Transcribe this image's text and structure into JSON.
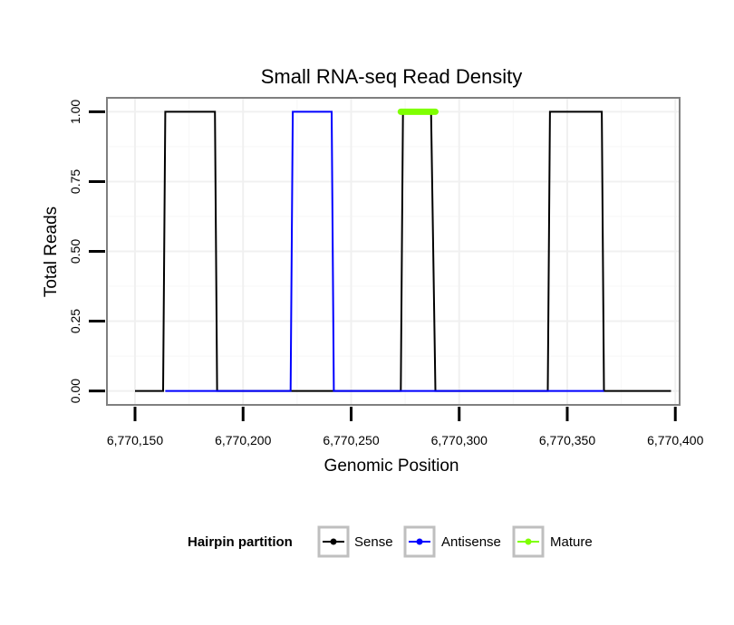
{
  "chart_data": {
    "type": "line",
    "title": "Small RNA-seq Read Density",
    "xlabel": "Genomic Position",
    "ylabel": "Total Reads",
    "xlim": [
      6770137,
      6770402
    ],
    "ylim": [
      -0.05,
      1.05
    ],
    "x_ticks": [
      {
        "value": 6770150,
        "label": "6,770,150"
      },
      {
        "value": 6770200,
        "label": "6,770,200"
      },
      {
        "value": 6770250,
        "label": "6,770,250"
      },
      {
        "value": 6770300,
        "label": "6,770,300"
      },
      {
        "value": 6770350,
        "label": "6,770,350"
      },
      {
        "value": 6770400,
        "label": "6,770,400"
      }
    ],
    "y_ticks": [
      {
        "value": 0.0,
        "label": "0.00"
      },
      {
        "value": 0.25,
        "label": "0.25"
      },
      {
        "value": 0.5,
        "label": "0.50"
      },
      {
        "value": 0.75,
        "label": "0.75"
      },
      {
        "value": 1.0,
        "label": "1.00"
      }
    ],
    "grid": true,
    "legend": {
      "title": "Hairpin partition",
      "placement": "bottom",
      "entries": [
        "Sense",
        "Antisense",
        "Mature"
      ]
    },
    "series": [
      {
        "name": "Sense",
        "color": "#000000",
        "points": [
          [
            6770150,
            0
          ],
          [
            6770163,
            0
          ],
          [
            6770164,
            1
          ],
          [
            6770187,
            1
          ],
          [
            6770188,
            0
          ],
          [
            6770222,
            0
          ],
          [
            6770273,
            0
          ],
          [
            6770274,
            1
          ],
          [
            6770287,
            1
          ],
          [
            6770289,
            0
          ],
          [
            6770341,
            0
          ],
          [
            6770342,
            1
          ],
          [
            6770366,
            1
          ],
          [
            6770367,
            0
          ],
          [
            6770398,
            0
          ]
        ]
      },
      {
        "name": "Antisense",
        "color": "#0000ff",
        "points": [
          [
            6770164,
            0
          ],
          [
            6770188,
            0
          ],
          [
            6770222,
            0
          ],
          [
            6770223,
            1
          ],
          [
            6770241,
            1
          ],
          [
            6770242,
            0
          ],
          [
            6770273,
            0
          ],
          [
            6770288,
            0
          ],
          [
            6770341,
            0
          ],
          [
            6770367,
            0
          ]
        ]
      },
      {
        "name": "Mature",
        "color": "#7fff00",
        "points": [
          [
            6770273,
            1
          ],
          [
            6770289,
            1
          ]
        ]
      }
    ]
  }
}
